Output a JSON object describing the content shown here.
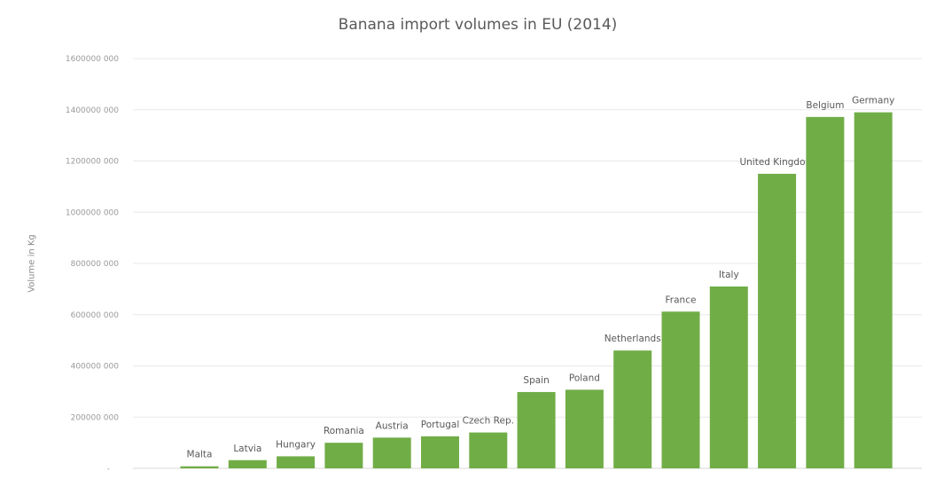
{
  "chart_data": {
    "type": "bar",
    "title": "Banana  import volumes in EU (2014)",
    "ylabel": "Volume in Kg",
    "xlabel": "",
    "ylim": [
      0,
      1600000000
    ],
    "yticks": [
      {
        "value": 0,
        "label": "-"
      },
      {
        "value": 200000000,
        "label": "200000 000"
      },
      {
        "value": 400000000,
        "label": "400000 000"
      },
      {
        "value": 600000000,
        "label": "600000 000"
      },
      {
        "value": 800000000,
        "label": "800000 000"
      },
      {
        "value": 1000000000,
        "label": "1000000 000"
      },
      {
        "value": 1200000000,
        "label": "1200000 000"
      },
      {
        "value": 1400000000,
        "label": "1400000 000"
      },
      {
        "value": 1600000000,
        "label": "1600000 000"
      }
    ],
    "categories": [
      "Malta",
      "Latvia",
      "Hungary",
      "Romania",
      "Austria",
      "Portugal",
      "Czech Rep.",
      "Spain",
      "Poland",
      "Netherlands",
      "France",
      "Italy",
      "United Kingdom",
      "Belgium",
      "Germany"
    ],
    "values": [
      8000000,
      32000000,
      47000000,
      100000000,
      120000000,
      125000000,
      140000000,
      298000000,
      307000000,
      460000000,
      612000000,
      710000000,
      1150000000,
      1372000000,
      1390000000
    ],
    "grid": true,
    "legend": "none",
    "colors": {
      "bar": "#70AD47",
      "grid": "#e8e8e8",
      "text": "#595959"
    }
  }
}
